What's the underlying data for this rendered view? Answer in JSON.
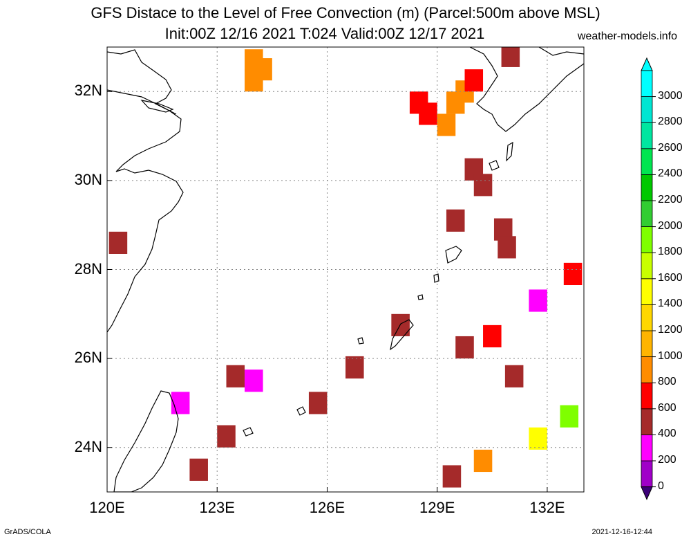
{
  "titles": {
    "line1": "GFS Distace to the Level of Free Convection (m) (Parcel:500m above MSL)",
    "line2": "Init:00Z 12/16 2021 T:024 Valid:00Z 12/17 2021",
    "site": "weather-models.info"
  },
  "footer": {
    "credit": "GrADS/COLA",
    "timestamp": "2021-12-16-12:44"
  },
  "map": {
    "lon_range": [
      120,
      133
    ],
    "lat_range": [
      23,
      33
    ],
    "x_ticks": [
      {
        "value": 120,
        "label": "120E"
      },
      {
        "value": 123,
        "label": "123E"
      },
      {
        "value": 126,
        "label": "126E"
      },
      {
        "value": 129,
        "label": "129E"
      },
      {
        "value": 132,
        "label": "132E"
      }
    ],
    "y_ticks": [
      {
        "value": 24,
        "label": "24N"
      },
      {
        "value": 26,
        "label": "26N"
      },
      {
        "value": 28,
        "label": "28N"
      },
      {
        "value": 30,
        "label": "30N"
      },
      {
        "value": 32,
        "label": "32N"
      }
    ],
    "grid": true
  },
  "colorbar": {
    "labels": [
      "0",
      "200",
      "400",
      "600",
      "800",
      "1000",
      "1200",
      "1400",
      "1600",
      "1800",
      "2000",
      "2200",
      "2400",
      "2600",
      "2800",
      "3000"
    ],
    "colors": [
      "#a000c8",
      "#ff00ff",
      "#a52a2a",
      "#ff0000",
      "#ff8c00",
      "#ffb400",
      "#ffd700",
      "#ffff00",
      "#c8ff00",
      "#7fff00",
      "#32cd32",
      "#00c800",
      "#00e650",
      "#00e6a0",
      "#00e6d2",
      "#00ffff"
    ],
    "under_color": "#3c0078",
    "over_color": "#00ffff"
  },
  "chart_data": {
    "type": "heatmap",
    "variable": "Distance to Level of Free Convection (m)",
    "cells": [
      {
        "lon": 124.0,
        "lat": 32.7,
        "value": 800
      },
      {
        "lon": 124.25,
        "lat": 32.5,
        "value": 800
      },
      {
        "lon": 124.0,
        "lat": 32.25,
        "value": 800
      },
      {
        "lon": 128.5,
        "lat": 31.75,
        "value": 600
      },
      {
        "lon": 128.75,
        "lat": 31.5,
        "value": 600
      },
      {
        "lon": 129.75,
        "lat": 32.0,
        "value": 800
      },
      {
        "lon": 129.5,
        "lat": 31.75,
        "value": 900
      },
      {
        "lon": 129.25,
        "lat": 31.25,
        "value": 900
      },
      {
        "lon": 130.0,
        "lat": 32.25,
        "value": 600
      },
      {
        "lon": 131.0,
        "lat": 32.8,
        "value": 500
      },
      {
        "lon": 130.0,
        "lat": 30.25,
        "value": 500
      },
      {
        "lon": 130.25,
        "lat": 29.9,
        "value": 500
      },
      {
        "lon": 129.5,
        "lat": 29.1,
        "value": 500
      },
      {
        "lon": 130.8,
        "lat": 28.9,
        "value": 500
      },
      {
        "lon": 130.9,
        "lat": 28.5,
        "value": 400
      },
      {
        "lon": 120.3,
        "lat": 28.6,
        "value": 500
      },
      {
        "lon": 132.7,
        "lat": 27.9,
        "value": 700
      },
      {
        "lon": 131.75,
        "lat": 27.3,
        "value": 300
      },
      {
        "lon": 128.0,
        "lat": 26.75,
        "value": 400
      },
      {
        "lon": 130.5,
        "lat": 26.5,
        "value": 600
      },
      {
        "lon": 129.75,
        "lat": 26.25,
        "value": 400
      },
      {
        "lon": 123.5,
        "lat": 25.6,
        "value": 400
      },
      {
        "lon": 124.0,
        "lat": 25.5,
        "value": 300
      },
      {
        "lon": 126.75,
        "lat": 25.8,
        "value": 400
      },
      {
        "lon": 125.75,
        "lat": 25.0,
        "value": 400
      },
      {
        "lon": 122.0,
        "lat": 25.0,
        "value": 200
      },
      {
        "lon": 123.25,
        "lat": 24.25,
        "value": 400
      },
      {
        "lon": 122.5,
        "lat": 23.5,
        "value": 500
      },
      {
        "lon": 131.1,
        "lat": 25.6,
        "value": 500
      },
      {
        "lon": 130.25,
        "lat": 23.7,
        "value": 900
      },
      {
        "lon": 129.4,
        "lat": 23.35,
        "value": 500
      },
      {
        "lon": 131.75,
        "lat": 24.2,
        "value": 1400
      },
      {
        "lon": 132.6,
        "lat": 24.7,
        "value": 1800
      }
    ]
  }
}
